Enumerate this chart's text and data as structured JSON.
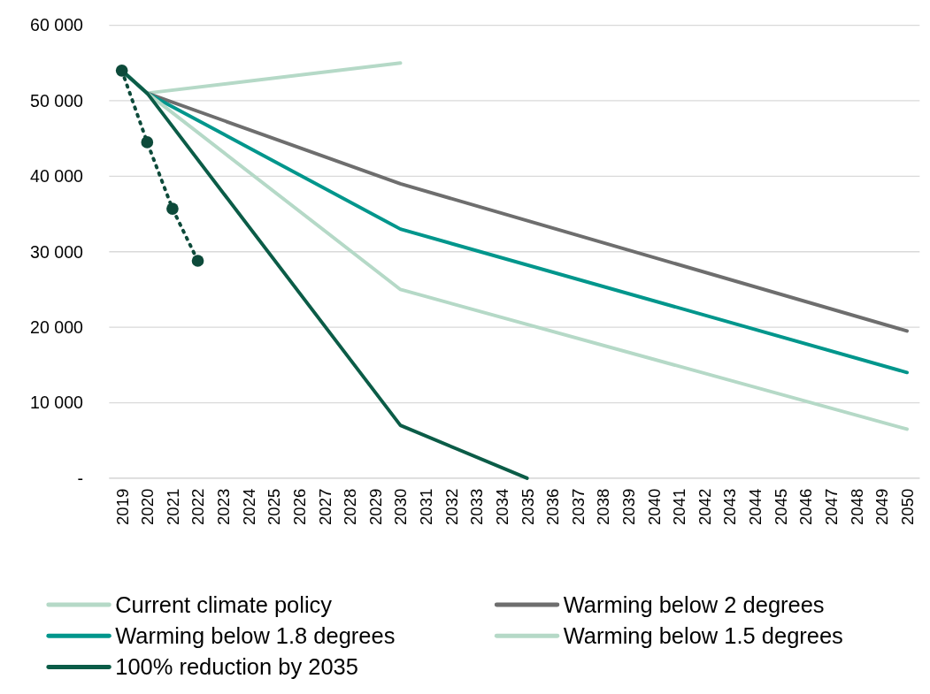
{
  "chart_data": {
    "type": "line",
    "categories": [
      "2019",
      "2020",
      "2021",
      "2022",
      "2023",
      "2024",
      "2025",
      "2026",
      "2027",
      "2028",
      "2029",
      "2030",
      "2031",
      "2032",
      "2033",
      "2034",
      "2035",
      "2036",
      "2037",
      "2038",
      "2039",
      "2040",
      "2041",
      "2042",
      "2043",
      "2044",
      "2045",
      "2046",
      "2047",
      "2048",
      "2049",
      "2050"
    ],
    "ylim": [
      0,
      60000
    ],
    "yticks": [
      {
        "value": 0,
        "label": "-"
      },
      {
        "value": 10000,
        "label": "10 000"
      },
      {
        "value": 20000,
        "label": "20 000"
      },
      {
        "value": 30000,
        "label": "30 000"
      },
      {
        "value": 40000,
        "label": "40 000"
      },
      {
        "value": 50000,
        "label": "50 000"
      },
      {
        "value": 60000,
        "label": "60 000"
      }
    ],
    "grid": "y",
    "legend": "bottom",
    "series": [
      {
        "name": "Current climate policy",
        "color": "#b5d9c7",
        "values": [
          null,
          51000,
          null,
          null,
          null,
          null,
          null,
          null,
          null,
          null,
          null,
          55000,
          null,
          null,
          null,
          null,
          null,
          null,
          null,
          null,
          null,
          null,
          null,
          null,
          null,
          null,
          null,
          null,
          null,
          null,
          null,
          null
        ]
      },
      {
        "name": "Warming below 2 degrees",
        "color": "#6e6e6e",
        "values": [
          54000,
          51000,
          null,
          null,
          null,
          null,
          null,
          null,
          null,
          null,
          null,
          39000,
          null,
          null,
          null,
          null,
          null,
          null,
          null,
          null,
          null,
          null,
          null,
          null,
          null,
          null,
          null,
          null,
          null,
          null,
          null,
          19500
        ]
      },
      {
        "name": "Warming below 1.8 degrees",
        "color": "#00968c",
        "values": [
          54000,
          51000,
          null,
          null,
          null,
          null,
          null,
          null,
          null,
          null,
          null,
          33000,
          null,
          null,
          null,
          null,
          null,
          null,
          null,
          null,
          null,
          null,
          null,
          null,
          null,
          null,
          null,
          null,
          null,
          null,
          null,
          14000
        ]
      },
      {
        "name": "Warming below 1.5 degrees",
        "color": "#b5d9c7",
        "values": [
          54000,
          51000,
          null,
          null,
          null,
          null,
          null,
          null,
          null,
          null,
          null,
          25000,
          null,
          null,
          null,
          null,
          null,
          null,
          null,
          null,
          null,
          null,
          null,
          null,
          null,
          null,
          null,
          null,
          null,
          null,
          null,
          6500
        ]
      },
      {
        "name": "100% reduction by 2035",
        "color": "#0b5c47",
        "values": [
          54000,
          51000,
          null,
          null,
          null,
          null,
          null,
          null,
          null,
          null,
          null,
          7000,
          null,
          null,
          null,
          null,
          0,
          null,
          null,
          null,
          null,
          null,
          null,
          null,
          null,
          null,
          null,
          null,
          null,
          null,
          null,
          null
        ]
      },
      {
        "color": "#0d4a3a",
        "marker": "circle",
        "line_style": "dotted",
        "values": [
          54000,
          44500,
          35700,
          28800,
          null,
          null,
          null,
          null,
          null,
          null,
          null,
          null,
          null,
          null,
          null,
          null,
          null,
          null,
          null,
          null,
          null,
          null,
          null,
          null,
          null,
          null,
          null,
          null,
          null,
          null,
          null,
          null
        ]
      }
    ]
  }
}
